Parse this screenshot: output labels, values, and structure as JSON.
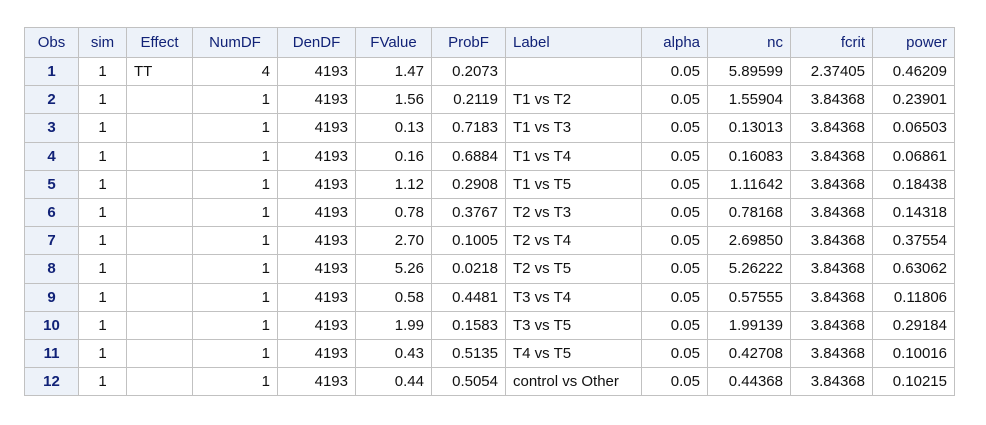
{
  "table": {
    "columns": [
      "Obs",
      "sim",
      "Effect",
      "NumDF",
      "DenDF",
      "FValue",
      "ProbF",
      "Label",
      "alpha",
      "nc",
      "fcrit",
      "power"
    ],
    "rows": [
      [
        "1",
        "1",
        "TT",
        "4",
        "4193",
        "1.47",
        "0.2073",
        "",
        "0.05",
        "5.89599",
        "2.37405",
        "0.46209"
      ],
      [
        "2",
        "1",
        "",
        "1",
        "4193",
        "1.56",
        "0.2119",
        "T1 vs T2",
        "0.05",
        "1.55904",
        "3.84368",
        "0.23901"
      ],
      [
        "3",
        "1",
        "",
        "1",
        "4193",
        "0.13",
        "0.7183",
        "T1 vs T3",
        "0.05",
        "0.13013",
        "3.84368",
        "0.06503"
      ],
      [
        "4",
        "1",
        "",
        "1",
        "4193",
        "0.16",
        "0.6884",
        "T1 vs T4",
        "0.05",
        "0.16083",
        "3.84368",
        "0.06861"
      ],
      [
        "5",
        "1",
        "",
        "1",
        "4193",
        "1.12",
        "0.2908",
        "T1 vs T5",
        "0.05",
        "1.11642",
        "3.84368",
        "0.18438"
      ],
      [
        "6",
        "1",
        "",
        "1",
        "4193",
        "0.78",
        "0.3767",
        "T2 vs T3",
        "0.05",
        "0.78168",
        "3.84368",
        "0.14318"
      ],
      [
        "7",
        "1",
        "",
        "1",
        "4193",
        "2.70",
        "0.1005",
        "T2 vs T4",
        "0.05",
        "2.69850",
        "3.84368",
        "0.37554"
      ],
      [
        "8",
        "1",
        "",
        "1",
        "4193",
        "5.26",
        "0.0218",
        "T2 vs T5",
        "0.05",
        "5.26222",
        "3.84368",
        "0.63062"
      ],
      [
        "9",
        "1",
        "",
        "1",
        "4193",
        "0.58",
        "0.4481",
        "T3 vs T4",
        "0.05",
        "0.57555",
        "3.84368",
        "0.11806"
      ],
      [
        "10",
        "1",
        "",
        "1",
        "4193",
        "1.99",
        "0.1583",
        "T3 vs T5",
        "0.05",
        "1.99139",
        "3.84368",
        "0.29184"
      ],
      [
        "11",
        "1",
        "",
        "1",
        "4193",
        "0.43",
        "0.5135",
        "T4 vs T5",
        "0.05",
        "0.42708",
        "3.84368",
        "0.10016"
      ],
      [
        "12",
        "1",
        "",
        "1",
        "4193",
        "0.44",
        "0.5054",
        "control vs Other",
        "0.05",
        "0.44368",
        "3.84368",
        "0.10215"
      ]
    ]
  },
  "colors": {
    "header_bg": "#edf2f9",
    "header_text": "#112277",
    "border": "#c1c1c1"
  }
}
